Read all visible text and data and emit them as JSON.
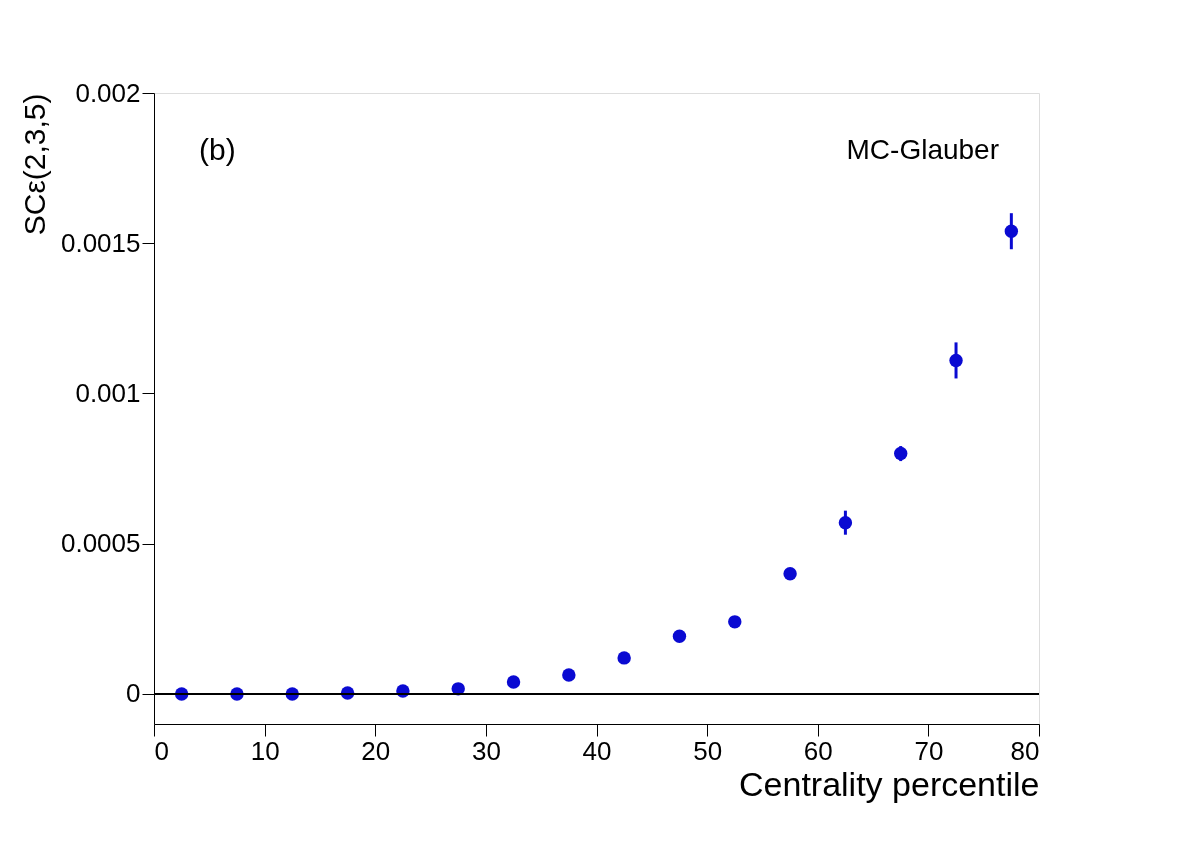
{
  "chart_data": {
    "type": "scatter",
    "xlabel": "Centrality percentile",
    "ylabel": "SCε(2,3,5)",
    "annotations": [
      "(b)",
      "MC-Glauber"
    ],
    "x": [
      2.5,
      7.5,
      12.5,
      17.5,
      22.5,
      27.5,
      32.5,
      37.5,
      42.5,
      47.5,
      52.5,
      57.5,
      62.5,
      67.5,
      72.5,
      77.5
    ],
    "series": [
      {
        "color": "#0a0ad2",
        "values": [
          0,
          0,
          0,
          3e-06,
          1e-05,
          1.7e-05,
          4e-05,
          6.3e-05,
          0.00012,
          0.000192,
          0.00024,
          0.0004,
          0.00057,
          0.0008,
          0.00111,
          0.00154
        ],
        "errors": [
          null,
          null,
          null,
          null,
          null,
          null,
          null,
          null,
          null,
          null,
          null,
          null,
          4e-05,
          2.5e-05,
          6e-05,
          6e-05
        ]
      }
    ],
    "xlim": [
      0,
      80
    ],
    "xticks": [
      0,
      10,
      20,
      30,
      40,
      50,
      60,
      70,
      80
    ],
    "ylim": [
      -0.0001,
      0.002
    ],
    "yticks": [
      0,
      0.0005,
      0.001,
      0.0015,
      0.002
    ],
    "ref_lines": [
      {
        "axis": "y",
        "value": 0,
        "color": "#000000"
      }
    ],
    "marker": "circle",
    "grid": false
  }
}
